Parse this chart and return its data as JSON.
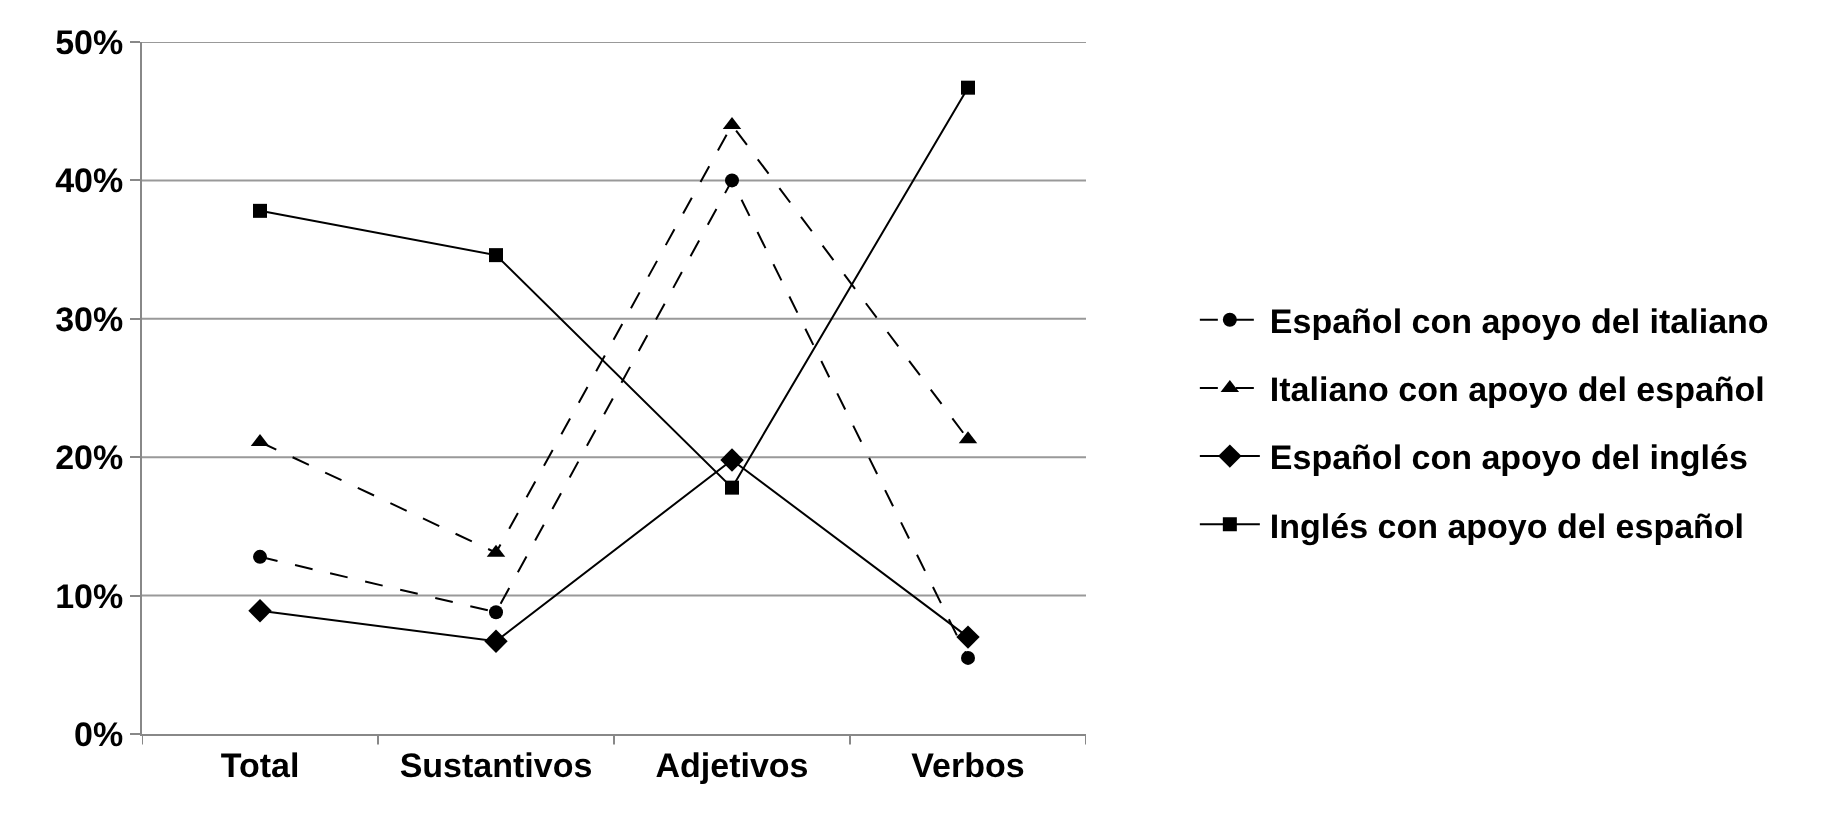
{
  "chart_data": {
    "type": "line",
    "categories": [
      "Total",
      "Sustantivos",
      "Adjetivos",
      "Verbos"
    ],
    "series": [
      {
        "name": "Español con apoyo del italiano",
        "color": "#000000",
        "marker": "circle",
        "line_style": "dashed",
        "values": [
          12.8,
          8.8,
          40.0,
          5.5
        ]
      },
      {
        "name": "Italiano con apoyo del español",
        "color": "#000000",
        "marker": "triangle",
        "line_style": "dashed",
        "values": [
          21.1,
          13.1,
          44.0,
          21.3
        ]
      },
      {
        "name": "Español con apoyo del inglés",
        "color": "#000000",
        "marker": "diamond",
        "line_style": "solid",
        "values": [
          8.9,
          6.7,
          19.8,
          7.0
        ]
      },
      {
        "name": "Inglés con apoyo del español",
        "color": "#000000",
        "marker": "square",
        "line_style": "solid",
        "values": [
          37.8,
          34.6,
          17.8,
          46.7
        ]
      }
    ],
    "ylim": [
      0,
      50
    ],
    "yticks": [
      {
        "value": 0,
        "label": "0%"
      },
      {
        "value": 10,
        "label": "10%"
      },
      {
        "value": 20,
        "label": "20%"
      },
      {
        "value": 30,
        "label": "30%"
      },
      {
        "value": 40,
        "label": "40%"
      },
      {
        "value": 50,
        "label": "50%"
      }
    ],
    "grid": "y",
    "legend": "right"
  }
}
